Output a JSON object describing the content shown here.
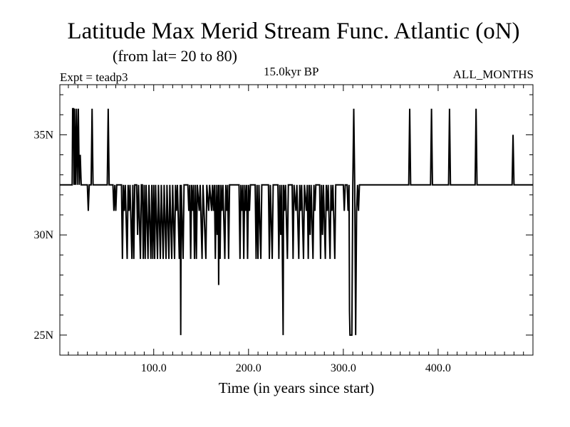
{
  "header": {
    "title": "Latitude Max Merid Stream Func. Atlantic (oN)",
    "subtitle": "(from lat= 20 to 80)",
    "experiment": "Expt = teadp3",
    "period": "15.0kyr BP",
    "months": "ALL_MONTHS"
  },
  "chart_data": {
    "type": "line",
    "title": "Latitude Max Merid Stream Func. Atlantic (oN)",
    "subtitle": "(from lat= 20 to 80)",
    "xlabel": "Time (in years since start)",
    "ylabel": "",
    "xlim": [
      1,
      500
    ],
    "ylim": [
      24,
      37.5
    ],
    "x_ticks": [
      {
        "value": 100,
        "label": "100.0"
      },
      {
        "value": 200,
        "label": "200.0"
      },
      {
        "value": 300,
        "label": "300.0"
      },
      {
        "value": 400,
        "label": "400.0"
      }
    ],
    "y_ticks": [
      {
        "value": 25,
        "label": "25N"
      },
      {
        "value": 30,
        "label": "30N"
      },
      {
        "value": 35,
        "label": "35N"
      }
    ],
    "grid": false,
    "legend": "none",
    "line_color": "#000000",
    "series": [
      {
        "values": [
          [
            1,
            32.5
          ],
          [
            14,
            32.5
          ],
          [
            14.5,
            36.3
          ],
          [
            15.5,
            36.3
          ],
          [
            16,
            32.5
          ],
          [
            16.5,
            36.3
          ],
          [
            17.5,
            32.5
          ],
          [
            18.5,
            36.3
          ],
          [
            19.5,
            32.5
          ],
          [
            20.5,
            36.3
          ],
          [
            21.5,
            32.5
          ],
          [
            22.5,
            34.0
          ],
          [
            23.5,
            32.5
          ],
          [
            30,
            32.5
          ],
          [
            31,
            31.2
          ],
          [
            32,
            32.5
          ],
          [
            34,
            32.5
          ],
          [
            35,
            36.3
          ],
          [
            36,
            32.5
          ],
          [
            51,
            32.5
          ],
          [
            52,
            36.3
          ],
          [
            53,
            32.5
          ],
          [
            56,
            32.5
          ],
          [
            57,
            32.5
          ],
          [
            58,
            31.2
          ],
          [
            59,
            32.5
          ],
          [
            60,
            31.2
          ],
          [
            61,
            32.5
          ],
          [
            63,
            32.5
          ],
          [
            64,
            32.5
          ],
          [
            66,
            32.5
          ],
          [
            67,
            28.8
          ],
          [
            68,
            32.5
          ],
          [
            69,
            31.2
          ],
          [
            70,
            32.5
          ],
          [
            72,
            28.8
          ],
          [
            73,
            32.5
          ],
          [
            74,
            31.2
          ],
          [
            75,
            32.5
          ],
          [
            77,
            28.8
          ],
          [
            78,
            32.5
          ],
          [
            79,
            28.8
          ],
          [
            80,
            32.5
          ],
          [
            82,
            32.5
          ],
          [
            83,
            30.0
          ],
          [
            84,
            32.5
          ],
          [
            86,
            28.8
          ],
          [
            87,
            32.5
          ],
          [
            88,
            32.5
          ],
          [
            89,
            28.8
          ],
          [
            90,
            32.5
          ],
          [
            91,
            28.8
          ],
          [
            92,
            32.5
          ],
          [
            94,
            28.8
          ],
          [
            95,
            32.5
          ],
          [
            97,
            28.8
          ],
          [
            98,
            32.5
          ],
          [
            99,
            28.8
          ],
          [
            100,
            32.5
          ],
          [
            101,
            28.8
          ],
          [
            102,
            32.5
          ],
          [
            104,
            28.8
          ],
          [
            105,
            32.5
          ],
          [
            107,
            28.8
          ],
          [
            108,
            32.5
          ],
          [
            110,
            28.8
          ],
          [
            111,
            32.5
          ],
          [
            113,
            28.8
          ],
          [
            114,
            32.5
          ],
          [
            116,
            28.8
          ],
          [
            117,
            32.5
          ],
          [
            119,
            28.8
          ],
          [
            120,
            32.5
          ],
          [
            122,
            28.8
          ],
          [
            123,
            32.5
          ],
          [
            124,
            31.2
          ],
          [
            125,
            32.5
          ],
          [
            127,
            28.8
          ],
          [
            128,
            32.5
          ],
          [
            128.5,
            25.0
          ],
          [
            129,
            32.5
          ],
          [
            131,
            28.8
          ],
          [
            132,
            32.5
          ],
          [
            136,
            32.5
          ],
          [
            137,
            31.2
          ],
          [
            138,
            32.5
          ],
          [
            139,
            28.8
          ],
          [
            140,
            32.5
          ],
          [
            141,
            31.2
          ],
          [
            142,
            32.5
          ],
          [
            143,
            28.8
          ],
          [
            144,
            32.5
          ],
          [
            145,
            28.8
          ],
          [
            146,
            32.5
          ],
          [
            148,
            31.2
          ],
          [
            149,
            32.5
          ],
          [
            151,
            28.8
          ],
          [
            152,
            32.5
          ],
          [
            155,
            28.8
          ],
          [
            156,
            32.5
          ],
          [
            158,
            31.2
          ],
          [
            159,
            32.5
          ],
          [
            161,
            31.2
          ],
          [
            162,
            32.5
          ],
          [
            163,
            31.2
          ],
          [
            164,
            32.5
          ],
          [
            165,
            28.8
          ],
          [
            166,
            32.5
          ],
          [
            167,
            30.0
          ],
          [
            168,
            32.5
          ],
          [
            168.5,
            27.5
          ],
          [
            169,
            32.5
          ],
          [
            170,
            28.8
          ],
          [
            171,
            32.5
          ],
          [
            172,
            31.2
          ],
          [
            173,
            32.5
          ],
          [
            175,
            28.8
          ],
          [
            176,
            32.5
          ],
          [
            177,
            31.2
          ],
          [
            178,
            32.5
          ],
          [
            179,
            28.8
          ],
          [
            180,
            32.5
          ],
          [
            190,
            32.5
          ],
          [
            191,
            28.8
          ],
          [
            192,
            32.5
          ],
          [
            193,
            31.2
          ],
          [
            194,
            32.5
          ],
          [
            195,
            28.8
          ],
          [
            196,
            32.5
          ],
          [
            197,
            31.2
          ],
          [
            198,
            32.5
          ],
          [
            199,
            28.8
          ],
          [
            200,
            32.5
          ],
          [
            201,
            31.2
          ],
          [
            202,
            32.5
          ],
          [
            207,
            32.5
          ],
          [
            208,
            28.8
          ],
          [
            209,
            32.5
          ],
          [
            210,
            28.8
          ],
          [
            211,
            32.5
          ],
          [
            213,
            28.8
          ],
          [
            214,
            32.5
          ],
          [
            221,
            32.5
          ],
          [
            222,
            28.8
          ],
          [
            223,
            32.5
          ],
          [
            225,
            28.8
          ],
          [
            226,
            32.5
          ],
          [
            231,
            32.5
          ],
          [
            232,
            28.8
          ],
          [
            233,
            32.5
          ],
          [
            234,
            30.0
          ],
          [
            235,
            32.5
          ],
          [
            236.5,
            25.0
          ],
          [
            237,
            32.5
          ],
          [
            238,
            31.2
          ],
          [
            239,
            32.5
          ],
          [
            241,
            28.8
          ],
          [
            242,
            32.5
          ],
          [
            246,
            32.5
          ],
          [
            247,
            28.8
          ],
          [
            248,
            32.5
          ],
          [
            250,
            31.2
          ],
          [
            251,
            32.5
          ],
          [
            253,
            28.8
          ],
          [
            254,
            32.5
          ],
          [
            255,
            31.2
          ],
          [
            256,
            32.5
          ],
          [
            258,
            28.8
          ],
          [
            259,
            32.5
          ],
          [
            261,
            31.2
          ],
          [
            262,
            32.5
          ],
          [
            263,
            28.8
          ],
          [
            264,
            32.5
          ],
          [
            265,
            30.0
          ],
          [
            266,
            32.5
          ],
          [
            268,
            28.8
          ],
          [
            269,
            32.5
          ],
          [
            270,
            31.2
          ],
          [
            271,
            32.5
          ],
          [
            275,
            32.5
          ],
          [
            276,
            28.8
          ],
          [
            277,
            32.5
          ],
          [
            278,
            30.0
          ],
          [
            279,
            32.5
          ],
          [
            281,
            28.8
          ],
          [
            282,
            32.5
          ],
          [
            283,
            31.2
          ],
          [
            284,
            32.5
          ],
          [
            286,
            28.8
          ],
          [
            287,
            32.5
          ],
          [
            288,
            31.2
          ],
          [
            289,
            32.5
          ],
          [
            291,
            28.8
          ],
          [
            292,
            32.5
          ],
          [
            300,
            32.5
          ],
          [
            301,
            31.2
          ],
          [
            302,
            32.5
          ],
          [
            304,
            32.5
          ],
          [
            305,
            31.2
          ],
          [
            306,
            32.5
          ],
          [
            306.5,
            26.2
          ],
          [
            307,
            25.0
          ],
          [
            309,
            25.0
          ],
          [
            310,
            32.5
          ],
          [
            311,
            36.3
          ],
          [
            312,
            32.5
          ],
          [
            313,
            25.0
          ],
          [
            314,
            31.2
          ],
          [
            315,
            32.5
          ],
          [
            316,
            31.2
          ],
          [
            317,
            32.5
          ],
          [
            369,
            32.5
          ],
          [
            370,
            36.3
          ],
          [
            371,
            32.5
          ],
          [
            392,
            32.5
          ],
          [
            393,
            36.3
          ],
          [
            394,
            32.5
          ],
          [
            411,
            32.5
          ],
          [
            412,
            36.3
          ],
          [
            413,
            32.5
          ],
          [
            439,
            32.5
          ],
          [
            440,
            36.3
          ],
          [
            441,
            32.5
          ],
          [
            478,
            32.5
          ],
          [
            479,
            35.0
          ],
          [
            480,
            32.5
          ],
          [
            500,
            32.5
          ]
        ]
      }
    ]
  }
}
